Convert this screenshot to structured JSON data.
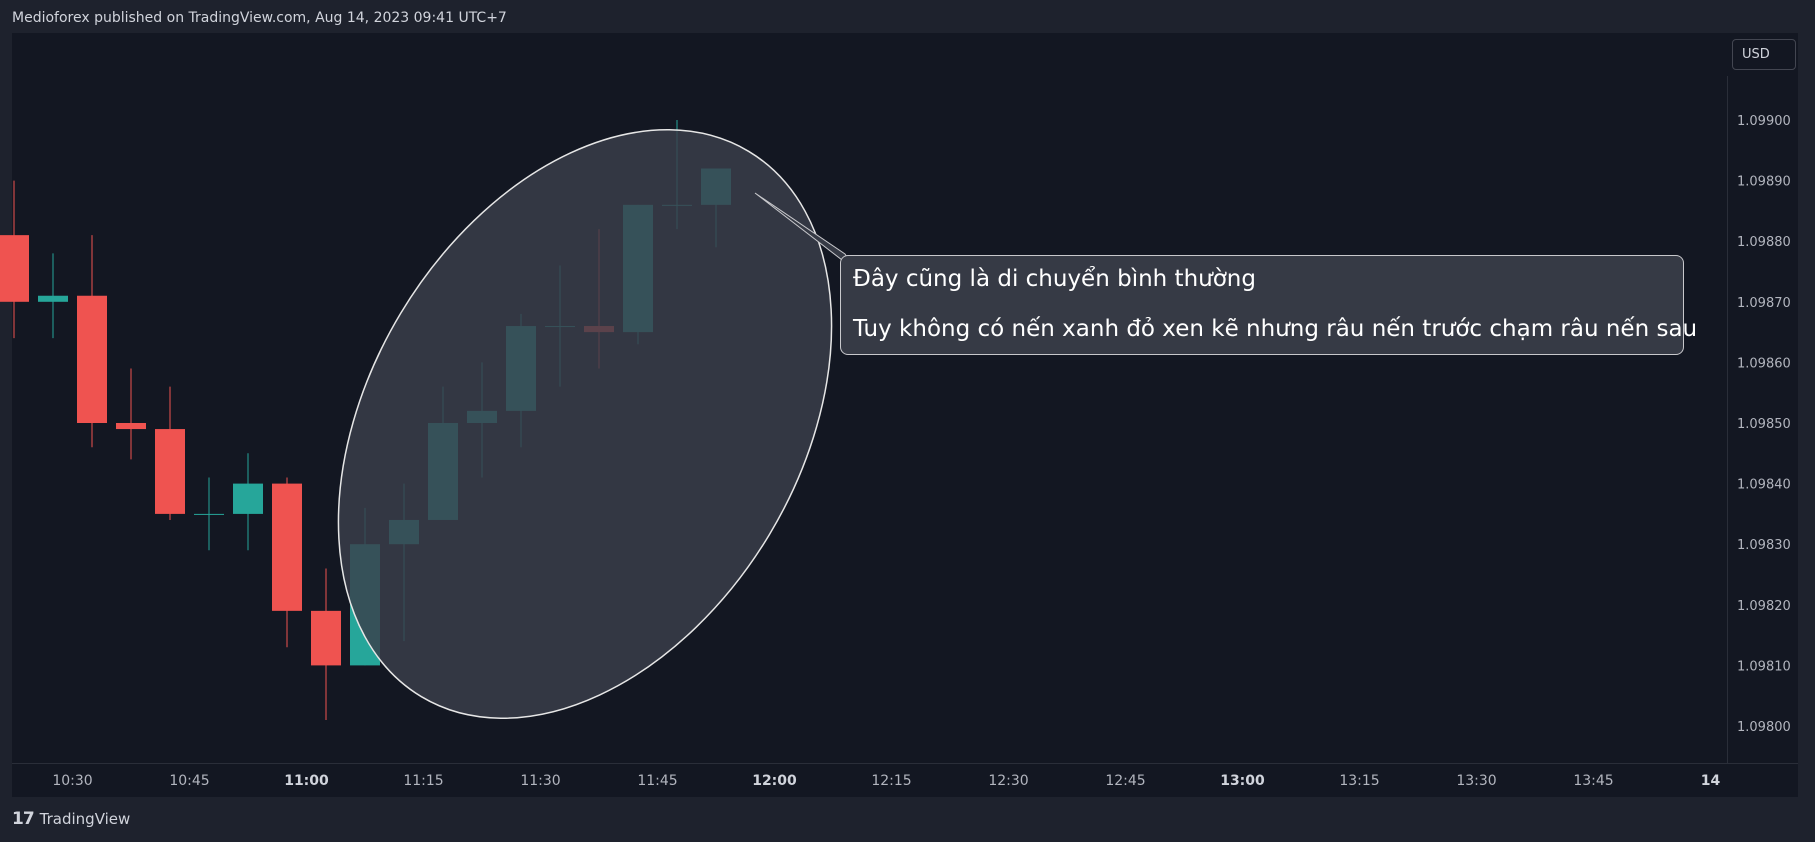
{
  "header": {
    "text": "Medioforex published on TradingView.com, Aug 14, 2023 09:41 UTC+7"
  },
  "footer": {
    "logo_icon": "tradingview-logo-icon",
    "brand": "TradingView"
  },
  "price_scale": {
    "currency": "USD"
  },
  "annotation": {
    "line1": "Đây cũng là di chuyển bình thường",
    "line2": "Tuy không có nến xanh đỏ xen kẽ nhưng râu nến trước chạm râu nến sau"
  },
  "colors": {
    "background": "#131722",
    "frame": "#1e222d",
    "up": "#26a69a",
    "down": "#ef5350",
    "ellipse_fill": "#3a3e4a",
    "ellipse_stroke": "#e6e6e6"
  },
  "chart_data": {
    "type": "candlestick",
    "title": "",
    "xlabel": "",
    "ylabel": "",
    "ylim": [
      1.09795,
      1.09907
    ],
    "y_ticks": [
      "1.09800",
      "1.09810",
      "1.09820",
      "1.09830",
      "1.09840",
      "1.09850",
      "1.09860",
      "1.09870",
      "1.09880",
      "1.09890",
      "1.09900"
    ],
    "x_ticks": [
      {
        "t": 1.5,
        "label": "10:30",
        "bold": false
      },
      {
        "t": 4.5,
        "label": "10:45",
        "bold": false
      },
      {
        "t": 7.5,
        "label": "11:00",
        "bold": true
      },
      {
        "t": 10.5,
        "label": "11:15",
        "bold": false
      },
      {
        "t": 13.5,
        "label": "11:30",
        "bold": false
      },
      {
        "t": 16.5,
        "label": "11:45",
        "bold": false
      },
      {
        "t": 19.5,
        "label": "12:00",
        "bold": true
      },
      {
        "t": 22.5,
        "label": "12:15",
        "bold": false
      },
      {
        "t": 25.5,
        "label": "12:30",
        "bold": false
      },
      {
        "t": 28.5,
        "label": "12:45",
        "bold": false
      },
      {
        "t": 31.5,
        "label": "13:00",
        "bold": true
      },
      {
        "t": 34.5,
        "label": "13:15",
        "bold": false
      },
      {
        "t": 37.5,
        "label": "13:30",
        "bold": false
      },
      {
        "t": 40.5,
        "label": "13:45",
        "bold": false
      },
      {
        "t": 43.5,
        "label": "14",
        "bold": true
      }
    ],
    "candles": [
      {
        "t": 0,
        "o": 1.09881,
        "h": 1.0989,
        "l": 1.09864,
        "c": 1.0987
      },
      {
        "t": 1,
        "o": 1.0987,
        "h": 1.09878,
        "l": 1.09864,
        "c": 1.09871
      },
      {
        "t": 2,
        "o": 1.09871,
        "h": 1.09881,
        "l": 1.09846,
        "c": 1.0985
      },
      {
        "t": 3,
        "o": 1.0985,
        "h": 1.09859,
        "l": 1.09844,
        "c": 1.09849
      },
      {
        "t": 4,
        "o": 1.09849,
        "h": 1.09856,
        "l": 1.09834,
        "c": 1.09835
      },
      {
        "t": 5,
        "o": 1.09835,
        "h": 1.09841,
        "l": 1.09829,
        "c": 1.09835
      },
      {
        "t": 6,
        "o": 1.09835,
        "h": 1.09845,
        "l": 1.09829,
        "c": 1.0984
      },
      {
        "t": 7,
        "o": 1.0984,
        "h": 1.09841,
        "l": 1.09813,
        "c": 1.09819
      },
      {
        "t": 8,
        "o": 1.09819,
        "h": 1.09826,
        "l": 1.09801,
        "c": 1.0981
      },
      {
        "t": 9,
        "o": 1.0981,
        "h": 1.09836,
        "l": 1.0981,
        "c": 1.0983
      },
      {
        "t": 10,
        "o": 1.0983,
        "h": 1.0984,
        "l": 1.09814,
        "c": 1.09834
      },
      {
        "t": 11,
        "o": 1.09834,
        "h": 1.09856,
        "l": 1.09834,
        "c": 1.0985
      },
      {
        "t": 12,
        "o": 1.0985,
        "h": 1.0986,
        "l": 1.09841,
        "c": 1.09852
      },
      {
        "t": 13,
        "o": 1.09852,
        "h": 1.09868,
        "l": 1.09846,
        "c": 1.09866
      },
      {
        "t": 14,
        "o": 1.09866,
        "h": 1.09876,
        "l": 1.09856,
        "c": 1.09866
      },
      {
        "t": 15,
        "o": 1.09866,
        "h": 1.09882,
        "l": 1.09859,
        "c": 1.09865
      },
      {
        "t": 16,
        "o": 1.09865,
        "h": 1.09886,
        "l": 1.09863,
        "c": 1.09886
      },
      {
        "t": 17,
        "o": 1.09886,
        "h": 1.099,
        "l": 1.09882,
        "c": 1.09886
      },
      {
        "t": 18,
        "o": 1.09886,
        "h": 1.09892,
        "l": 1.09879,
        "c": 1.09892
      }
    ]
  }
}
